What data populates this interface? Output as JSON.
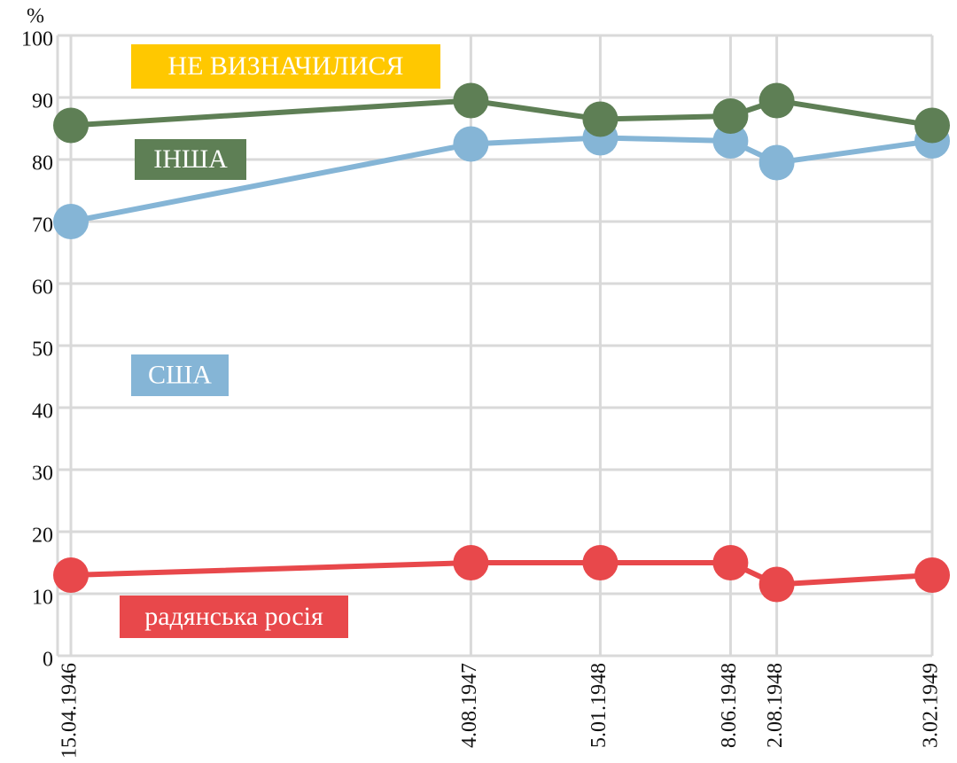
{
  "chart_data": {
    "type": "line",
    "y_axis_label": "%",
    "x": [
      "15.04.1946",
      "4.08.1947",
      "5.01.1948",
      "8.06.1948",
      "2.08.1948",
      "3.02.1949"
    ],
    "series": [
      {
        "name": "радянська росія",
        "color": "#e8484b",
        "values": [
          13,
          15,
          15,
          15,
          11.5,
          13
        ]
      },
      {
        "name": "США",
        "color": "#85b5d6",
        "values": [
          70,
          82.5,
          83.5,
          83,
          79.5,
          83
        ]
      },
      {
        "name": "ІНША",
        "color": "#5e7f55",
        "values": [
          85.5,
          89.5,
          86.5,
          87,
          89.5,
          85.5
        ]
      }
    ],
    "annotation": {
      "text": "НЕ ВИЗНАЧИЛИСЯ",
      "color": "#ffc800"
    },
    "ylim": [
      0,
      100
    ],
    "yticks": [
      0,
      10,
      20,
      30,
      40,
      50,
      60,
      70,
      80,
      90,
      100
    ],
    "grid": true
  }
}
